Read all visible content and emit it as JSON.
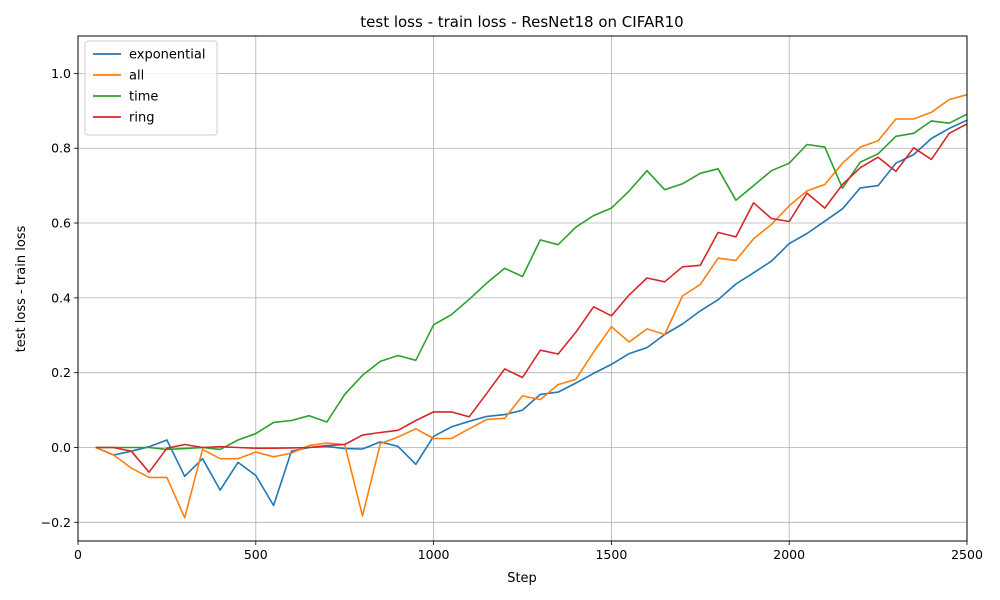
{
  "chart_data": {
    "type": "line",
    "title": "test loss - train loss - ResNet18 on CIFAR10",
    "xlabel": "Step",
    "ylabel": "test loss - train loss",
    "xlim": [
      0,
      2500
    ],
    "ylim": [
      -0.25,
      1.1
    ],
    "xticks": [
      0,
      500,
      1000,
      1500,
      2000,
      2500
    ],
    "xtick_labels": [
      "0",
      "500",
      "1000",
      "1500",
      "2000",
      "2500"
    ],
    "yticks": [
      -0.2,
      0.0,
      0.2,
      0.4,
      0.6,
      0.8,
      1.0
    ],
    "ytick_labels": [
      "−0.2",
      "0.0",
      "0.2",
      "0.4",
      "0.6",
      "0.8",
      "1.0"
    ],
    "grid": true,
    "legend_position": "top-left",
    "x": [
      50,
      100,
      150,
      200,
      250,
      300,
      350,
      400,
      450,
      500,
      550,
      600,
      650,
      700,
      750,
      800,
      850,
      900,
      950,
      1000,
      1050,
      1100,
      1150,
      1200,
      1250,
      1300,
      1350,
      1400,
      1450,
      1500,
      1550,
      1600,
      1650,
      1700,
      1750,
      1800,
      1850,
      1900,
      1950,
      2000,
      2050,
      2100,
      2150,
      2200,
      2250,
      2300,
      2350,
      2400,
      2450,
      2500
    ],
    "series": [
      {
        "name": "exponential",
        "color": "#1f77b4",
        "values": [
          0.0,
          -0.02,
          -0.01,
          0.002,
          0.02,
          -0.077,
          -0.03,
          -0.114,
          -0.04,
          -0.075,
          -0.155,
          -0.01,
          0.0,
          0.003,
          -0.003,
          -0.004,
          0.015,
          0.003,
          -0.045,
          0.03,
          0.055,
          0.07,
          0.083,
          0.088,
          0.1,
          0.142,
          0.148,
          0.172,
          0.198,
          0.222,
          0.251,
          0.267,
          0.302,
          0.33,
          0.365,
          0.395,
          0.437,
          0.467,
          0.498,
          0.545,
          0.572,
          0.605,
          0.638,
          0.694,
          0.7,
          0.76,
          0.783,
          0.826,
          0.853,
          0.875
        ]
      },
      {
        "name": "all",
        "color": "#ff7f0e",
        "values": [
          0.0,
          -0.02,
          -0.055,
          -0.08,
          -0.08,
          -0.188,
          -0.005,
          -0.03,
          -0.03,
          -0.012,
          -0.025,
          -0.015,
          0.005,
          0.012,
          0.008,
          -0.183,
          0.01,
          0.028,
          0.05,
          0.024,
          0.024,
          0.05,
          0.075,
          0.078,
          0.138,
          0.128,
          0.168,
          0.182,
          0.255,
          0.323,
          0.282,
          0.317,
          0.302,
          0.405,
          0.436,
          0.506,
          0.5,
          0.558,
          0.596,
          0.646,
          0.686,
          0.703,
          0.76,
          0.803,
          0.82,
          0.878,
          0.878,
          0.896,
          0.93,
          0.943
        ]
      },
      {
        "name": "time",
        "color": "#2ca02c",
        "values": [
          0.0,
          0.0,
          0.0,
          0.0,
          -0.005,
          -0.003,
          0.0,
          -0.005,
          0.02,
          0.037,
          0.067,
          0.072,
          0.085,
          0.068,
          0.142,
          0.193,
          0.23,
          0.246,
          0.233,
          0.328,
          0.355,
          0.396,
          0.44,
          0.479,
          0.457,
          0.555,
          0.542,
          0.589,
          0.62,
          0.64,
          0.686,
          0.74,
          0.689,
          0.705,
          0.733,
          0.745,
          0.661,
          0.7,
          0.74,
          0.76,
          0.81,
          0.803,
          0.693,
          0.763,
          0.785,
          0.832,
          0.84,
          0.873,
          0.867,
          0.891
        ]
      },
      {
        "name": "ring",
        "color": "#d62728",
        "values": [
          0.0,
          0.0,
          -0.01,
          -0.066,
          -0.002,
          0.008,
          0.0,
          0.002,
          0.0,
          -0.002,
          -0.002,
          -0.001,
          0.0,
          0.005,
          0.008,
          0.033,
          0.04,
          0.046,
          0.072,
          0.095,
          0.095,
          0.082,
          0.145,
          0.21,
          0.187,
          0.26,
          0.25,
          0.308,
          0.376,
          0.352,
          0.408,
          0.453,
          0.443,
          0.483,
          0.487,
          0.575,
          0.563,
          0.654,
          0.612,
          0.604,
          0.68,
          0.64,
          0.703,
          0.748,
          0.776,
          0.738,
          0.801,
          0.77,
          0.84,
          0.865
        ]
      }
    ]
  }
}
